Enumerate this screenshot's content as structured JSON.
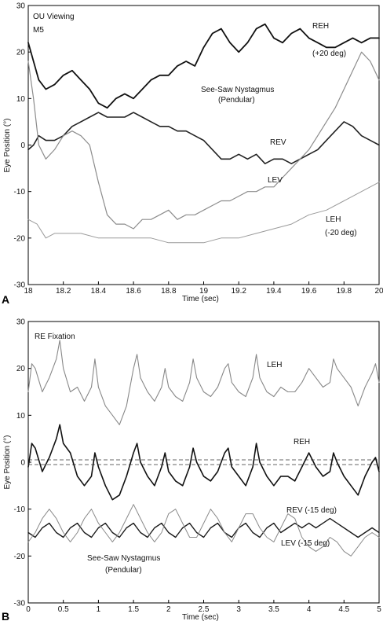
{
  "chart_data": [
    {
      "type": "line",
      "panel": "A",
      "xlabel": "Time (sec)",
      "ylabel": "Eye Position (°)",
      "xlim": [
        18,
        20
      ],
      "ylim": [
        -30,
        30
      ],
      "xticks": [
        "18",
        "18.2",
        "18.4",
        "18.6",
        "18.8",
        "19",
        "19.2",
        "19.4",
        "19.6",
        "19.8",
        "20"
      ],
      "yticks": [
        "30",
        "20",
        "10",
        "0",
        "-10",
        "-20",
        "-30"
      ],
      "annotations": [
        "OU Viewing",
        "M5",
        "See-Saw Nystagmus",
        "(Pendular)"
      ],
      "series": [
        {
          "name": "REH",
          "sublabel": "(+20 deg)",
          "color": "#111111",
          "width": 1.8,
          "x": [
            18.0,
            18.03,
            18.06,
            18.1,
            18.15,
            18.2,
            18.25,
            18.3,
            18.35,
            18.4,
            18.45,
            18.5,
            18.55,
            18.6,
            18.65,
            18.7,
            18.75,
            18.8,
            18.85,
            18.9,
            18.95,
            19.0,
            19.05,
            19.1,
            19.15,
            19.2,
            19.25,
            19.3,
            19.35,
            19.4,
            19.45,
            19.5,
            19.55,
            19.6,
            19.65,
            19.7,
            19.75,
            19.8,
            19.85,
            19.9,
            19.95,
            20.0
          ],
          "y": [
            22,
            18,
            14,
            12,
            13,
            15,
            16,
            14,
            12,
            9,
            8,
            10,
            11,
            10,
            12,
            14,
            15,
            15,
            17,
            18,
            17,
            21,
            24,
            25,
            22,
            20,
            22,
            25,
            26,
            23,
            22,
            24,
            25,
            23,
            22,
            21,
            21,
            22,
            23,
            22,
            23,
            23
          ]
        },
        {
          "name": "REV",
          "color": "#222222",
          "width": 1.6,
          "x": [
            18.0,
            18.03,
            18.06,
            18.1,
            18.15,
            18.2,
            18.25,
            18.3,
            18.35,
            18.4,
            18.45,
            18.5,
            18.55,
            18.6,
            18.65,
            18.7,
            18.75,
            18.8,
            18.85,
            18.9,
            18.95,
            19.0,
            19.05,
            19.1,
            19.15,
            19.2,
            19.25,
            19.3,
            19.35,
            19.4,
            19.45,
            19.5,
            19.55,
            19.6,
            19.65,
            19.7,
            19.75,
            19.8,
            19.85,
            19.9,
            19.95,
            20.0
          ],
          "y": [
            -1,
            0,
            2,
            1,
            1,
            2,
            4,
            5,
            6,
            7,
            6,
            6,
            6,
            7,
            6,
            5,
            4,
            4,
            3,
            3,
            2,
            1,
            -1,
            -3,
            -3,
            -2,
            -3,
            -2,
            -4,
            -3,
            -3,
            -4,
            -3,
            -2,
            -1,
            1,
            3,
            5,
            4,
            2,
            1,
            0
          ]
        },
        {
          "name": "LEV",
          "color": "#8c8c8c",
          "width": 1.2,
          "x": [
            18.0,
            18.03,
            18.06,
            18.1,
            18.15,
            18.2,
            18.25,
            18.3,
            18.35,
            18.4,
            18.45,
            18.5,
            18.55,
            18.6,
            18.65,
            18.7,
            18.75,
            18.8,
            18.85,
            18.9,
            18.95,
            19.0,
            19.05,
            19.1,
            19.15,
            19.2,
            19.25,
            19.3,
            19.35,
            19.4,
            19.45,
            19.5,
            19.55,
            19.6,
            19.65,
            19.7,
            19.75,
            19.8,
            19.85,
            19.9,
            19.95,
            20.0
          ],
          "y": [
            18,
            10,
            0,
            -3,
            -1,
            2,
            3,
            2,
            0,
            -8,
            -15,
            -17,
            -17,
            -18,
            -16,
            -16,
            -15,
            -14,
            -16,
            -15,
            -15,
            -14,
            -13,
            -12,
            -12,
            -11,
            -10,
            -10,
            -9,
            -9,
            -7,
            -5,
            -3,
            -1,
            2,
            5,
            8,
            12,
            16,
            20,
            18,
            14
          ]
        },
        {
          "name": "LEH",
          "sublabel": "(-20 deg)",
          "color": "#9a9a9a",
          "width": 1.0,
          "x": [
            18.0,
            18.05,
            18.1,
            18.15,
            18.2,
            18.3,
            18.4,
            18.5,
            18.6,
            18.7,
            18.8,
            18.9,
            19.0,
            19.1,
            19.2,
            19.3,
            19.4,
            19.5,
            19.6,
            19.7,
            19.8,
            19.9,
            20.0
          ],
          "y": [
            -16,
            -17,
            -20,
            -19,
            -19,
            -19,
            -20,
            -20,
            -20,
            -20,
            -21,
            -21,
            -21,
            -20,
            -20,
            -19,
            -18,
            -17,
            -15,
            -14,
            -12,
            -10,
            -8
          ]
        }
      ]
    },
    {
      "type": "line",
      "panel": "B",
      "xlabel": "Time (sec)",
      "ylabel": "Eye Position (°)",
      "xlim": [
        0,
        5
      ],
      "ylim": [
        -30,
        30
      ],
      "xticks": [
        "0",
        "0.5",
        "1",
        "1.5",
        "2",
        "2.5",
        "3",
        "3.5",
        "4",
        "4.5",
        "5"
      ],
      "yticks": [
        "30",
        "20",
        "10",
        "0",
        "-10",
        "-20",
        "-30"
      ],
      "annotations": [
        "RE Fixation",
        "See-Saw Nystagmus",
        "(Pendular)"
      ],
      "reference_lines": [
        0.5,
        -0.5
      ],
      "series": [
        {
          "name": "LEH",
          "color": "#888888",
          "width": 1.1,
          "x": [
            0.0,
            0.05,
            0.1,
            0.2,
            0.3,
            0.4,
            0.45,
            0.5,
            0.6,
            0.7,
            0.8,
            0.9,
            0.95,
            1.0,
            1.1,
            1.2,
            1.3,
            1.4,
            1.5,
            1.55,
            1.6,
            1.7,
            1.8,
            1.9,
            1.95,
            2.0,
            2.1,
            2.2,
            2.3,
            2.35,
            2.4,
            2.5,
            2.6,
            2.7,
            2.8,
            2.85,
            2.9,
            3.0,
            3.1,
            3.2,
            3.25,
            3.3,
            3.4,
            3.5,
            3.6,
            3.7,
            3.8,
            3.9,
            4.0,
            4.1,
            4.2,
            4.3,
            4.35,
            4.4,
            4.5,
            4.6,
            4.7,
            4.8,
            4.9,
            4.95,
            5.0
          ],
          "y": [
            15,
            21,
            20,
            15,
            18,
            22,
            26,
            20,
            15,
            16,
            13,
            16,
            22,
            16,
            12,
            10,
            8,
            12,
            20,
            23,
            18,
            15,
            13,
            16,
            20,
            16,
            14,
            13,
            17,
            22,
            18,
            15,
            14,
            16,
            20,
            21,
            17,
            15,
            14,
            18,
            23,
            18,
            15,
            14,
            16,
            15,
            15,
            17,
            20,
            18,
            16,
            17,
            22,
            20,
            18,
            16,
            12,
            16,
            19,
            21,
            17
          ]
        },
        {
          "name": "REH",
          "color": "#111111",
          "width": 1.6,
          "x": [
            0.0,
            0.05,
            0.1,
            0.2,
            0.3,
            0.4,
            0.45,
            0.5,
            0.6,
            0.7,
            0.8,
            0.9,
            0.95,
            1.0,
            1.1,
            1.2,
            1.3,
            1.4,
            1.5,
            1.55,
            1.6,
            1.7,
            1.8,
            1.9,
            1.95,
            2.0,
            2.1,
            2.2,
            2.3,
            2.35,
            2.4,
            2.5,
            2.6,
            2.7,
            2.8,
            2.85,
            2.9,
            3.0,
            3.1,
            3.2,
            3.25,
            3.3,
            3.4,
            3.5,
            3.6,
            3.7,
            3.8,
            3.9,
            4.0,
            4.1,
            4.2,
            4.3,
            4.35,
            4.4,
            4.5,
            4.6,
            4.7,
            4.8,
            4.9,
            4.95,
            5.0
          ],
          "y": [
            -1,
            4,
            3,
            -2,
            1,
            5,
            8,
            4,
            2,
            -3,
            -5,
            -3,
            2,
            -1,
            -5,
            -8,
            -7,
            -3,
            2,
            4,
            0,
            -3,
            -5,
            -1,
            2,
            -2,
            -4,
            -5,
            -1,
            3,
            0,
            -3,
            -4,
            -2,
            2,
            3,
            -1,
            -3,
            -5,
            -1,
            4,
            0,
            -3,
            -5,
            -3,
            -3,
            -4,
            -1,
            2,
            -1,
            -3,
            -2,
            2,
            0,
            -3,
            -5,
            -7,
            -3,
            0,
            1,
            -2
          ]
        },
        {
          "name": "REV",
          "sublabel": "(-15 deg)",
          "color": "#1a1a1a",
          "width": 1.4,
          "x": [
            0.0,
            0.1,
            0.2,
            0.3,
            0.4,
            0.5,
            0.6,
            0.7,
            0.8,
            0.9,
            1.0,
            1.1,
            1.2,
            1.3,
            1.4,
            1.5,
            1.6,
            1.7,
            1.8,
            1.9,
            2.0,
            2.1,
            2.2,
            2.3,
            2.4,
            2.5,
            2.6,
            2.7,
            2.8,
            2.9,
            3.0,
            3.1,
            3.2,
            3.3,
            3.4,
            3.5,
            3.6,
            3.7,
            3.8,
            3.9,
            4.0,
            4.1,
            4.2,
            4.3,
            4.4,
            4.5,
            4.6,
            4.7,
            4.8,
            4.9,
            5.0
          ],
          "y": [
            -15,
            -16,
            -14,
            -13,
            -15,
            -16,
            -14,
            -13,
            -15,
            -16,
            -14,
            -13,
            -15,
            -16,
            -14,
            -13,
            -15,
            -16,
            -14,
            -13,
            -15,
            -16,
            -14,
            -13,
            -15,
            -16,
            -14,
            -13,
            -15,
            -16,
            -14,
            -13,
            -15,
            -16,
            -14,
            -13,
            -15,
            -14,
            -13,
            -14,
            -13,
            -14,
            -13,
            -12,
            -13,
            -14,
            -15,
            -16,
            -15,
            -14,
            -15
          ]
        },
        {
          "name": "LEV",
          "sublabel": "(-15 deg)",
          "color": "#8a8a8a",
          "width": 1.0,
          "x": [
            0.0,
            0.1,
            0.2,
            0.3,
            0.4,
            0.5,
            0.6,
            0.7,
            0.8,
            0.9,
            1.0,
            1.1,
            1.2,
            1.3,
            1.4,
            1.5,
            1.6,
            1.7,
            1.8,
            1.9,
            2.0,
            2.1,
            2.2,
            2.3,
            2.4,
            2.5,
            2.6,
            2.7,
            2.8,
            2.9,
            3.0,
            3.1,
            3.2,
            3.3,
            3.4,
            3.5,
            3.6,
            3.7,
            3.8,
            3.9,
            4.0,
            4.1,
            4.2,
            4.3,
            4.4,
            4.5,
            4.6,
            4.7,
            4.8,
            4.9,
            5.0
          ],
          "y": [
            -17,
            -15,
            -12,
            -10,
            -12,
            -15,
            -17,
            -15,
            -12,
            -10,
            -13,
            -15,
            -17,
            -15,
            -12,
            -9,
            -12,
            -15,
            -17,
            -15,
            -11,
            -10,
            -13,
            -16,
            -16,
            -13,
            -10,
            -12,
            -15,
            -17,
            -14,
            -11,
            -11,
            -14,
            -16,
            -17,
            -14,
            -11,
            -12,
            -16,
            -18,
            -19,
            -18,
            -16,
            -17,
            -19,
            -20,
            -18,
            -16,
            -15,
            -16
          ]
        }
      ]
    }
  ],
  "panel_letters": {
    "a": "A",
    "b": "B"
  },
  "labels_a": {
    "reh": "REH",
    "reh_sub": "(+20 deg)",
    "rev": "REV",
    "lev": "LEV",
    "leh": "LEH",
    "leh_sub": "(-20 deg)",
    "ou": "OU Viewing",
    "m5": "M5",
    "ssn": "See-Saw Nystagmus",
    "pend": "(Pendular)"
  },
  "labels_b": {
    "fix": "RE Fixation",
    "leh": "LEH",
    "reh": "REH",
    "rev": "REV (-15 deg)",
    "lev": "LEV (-15 deg)",
    "ssn": "See-Saw Nystagmus",
    "pend": "(Pendular)"
  }
}
